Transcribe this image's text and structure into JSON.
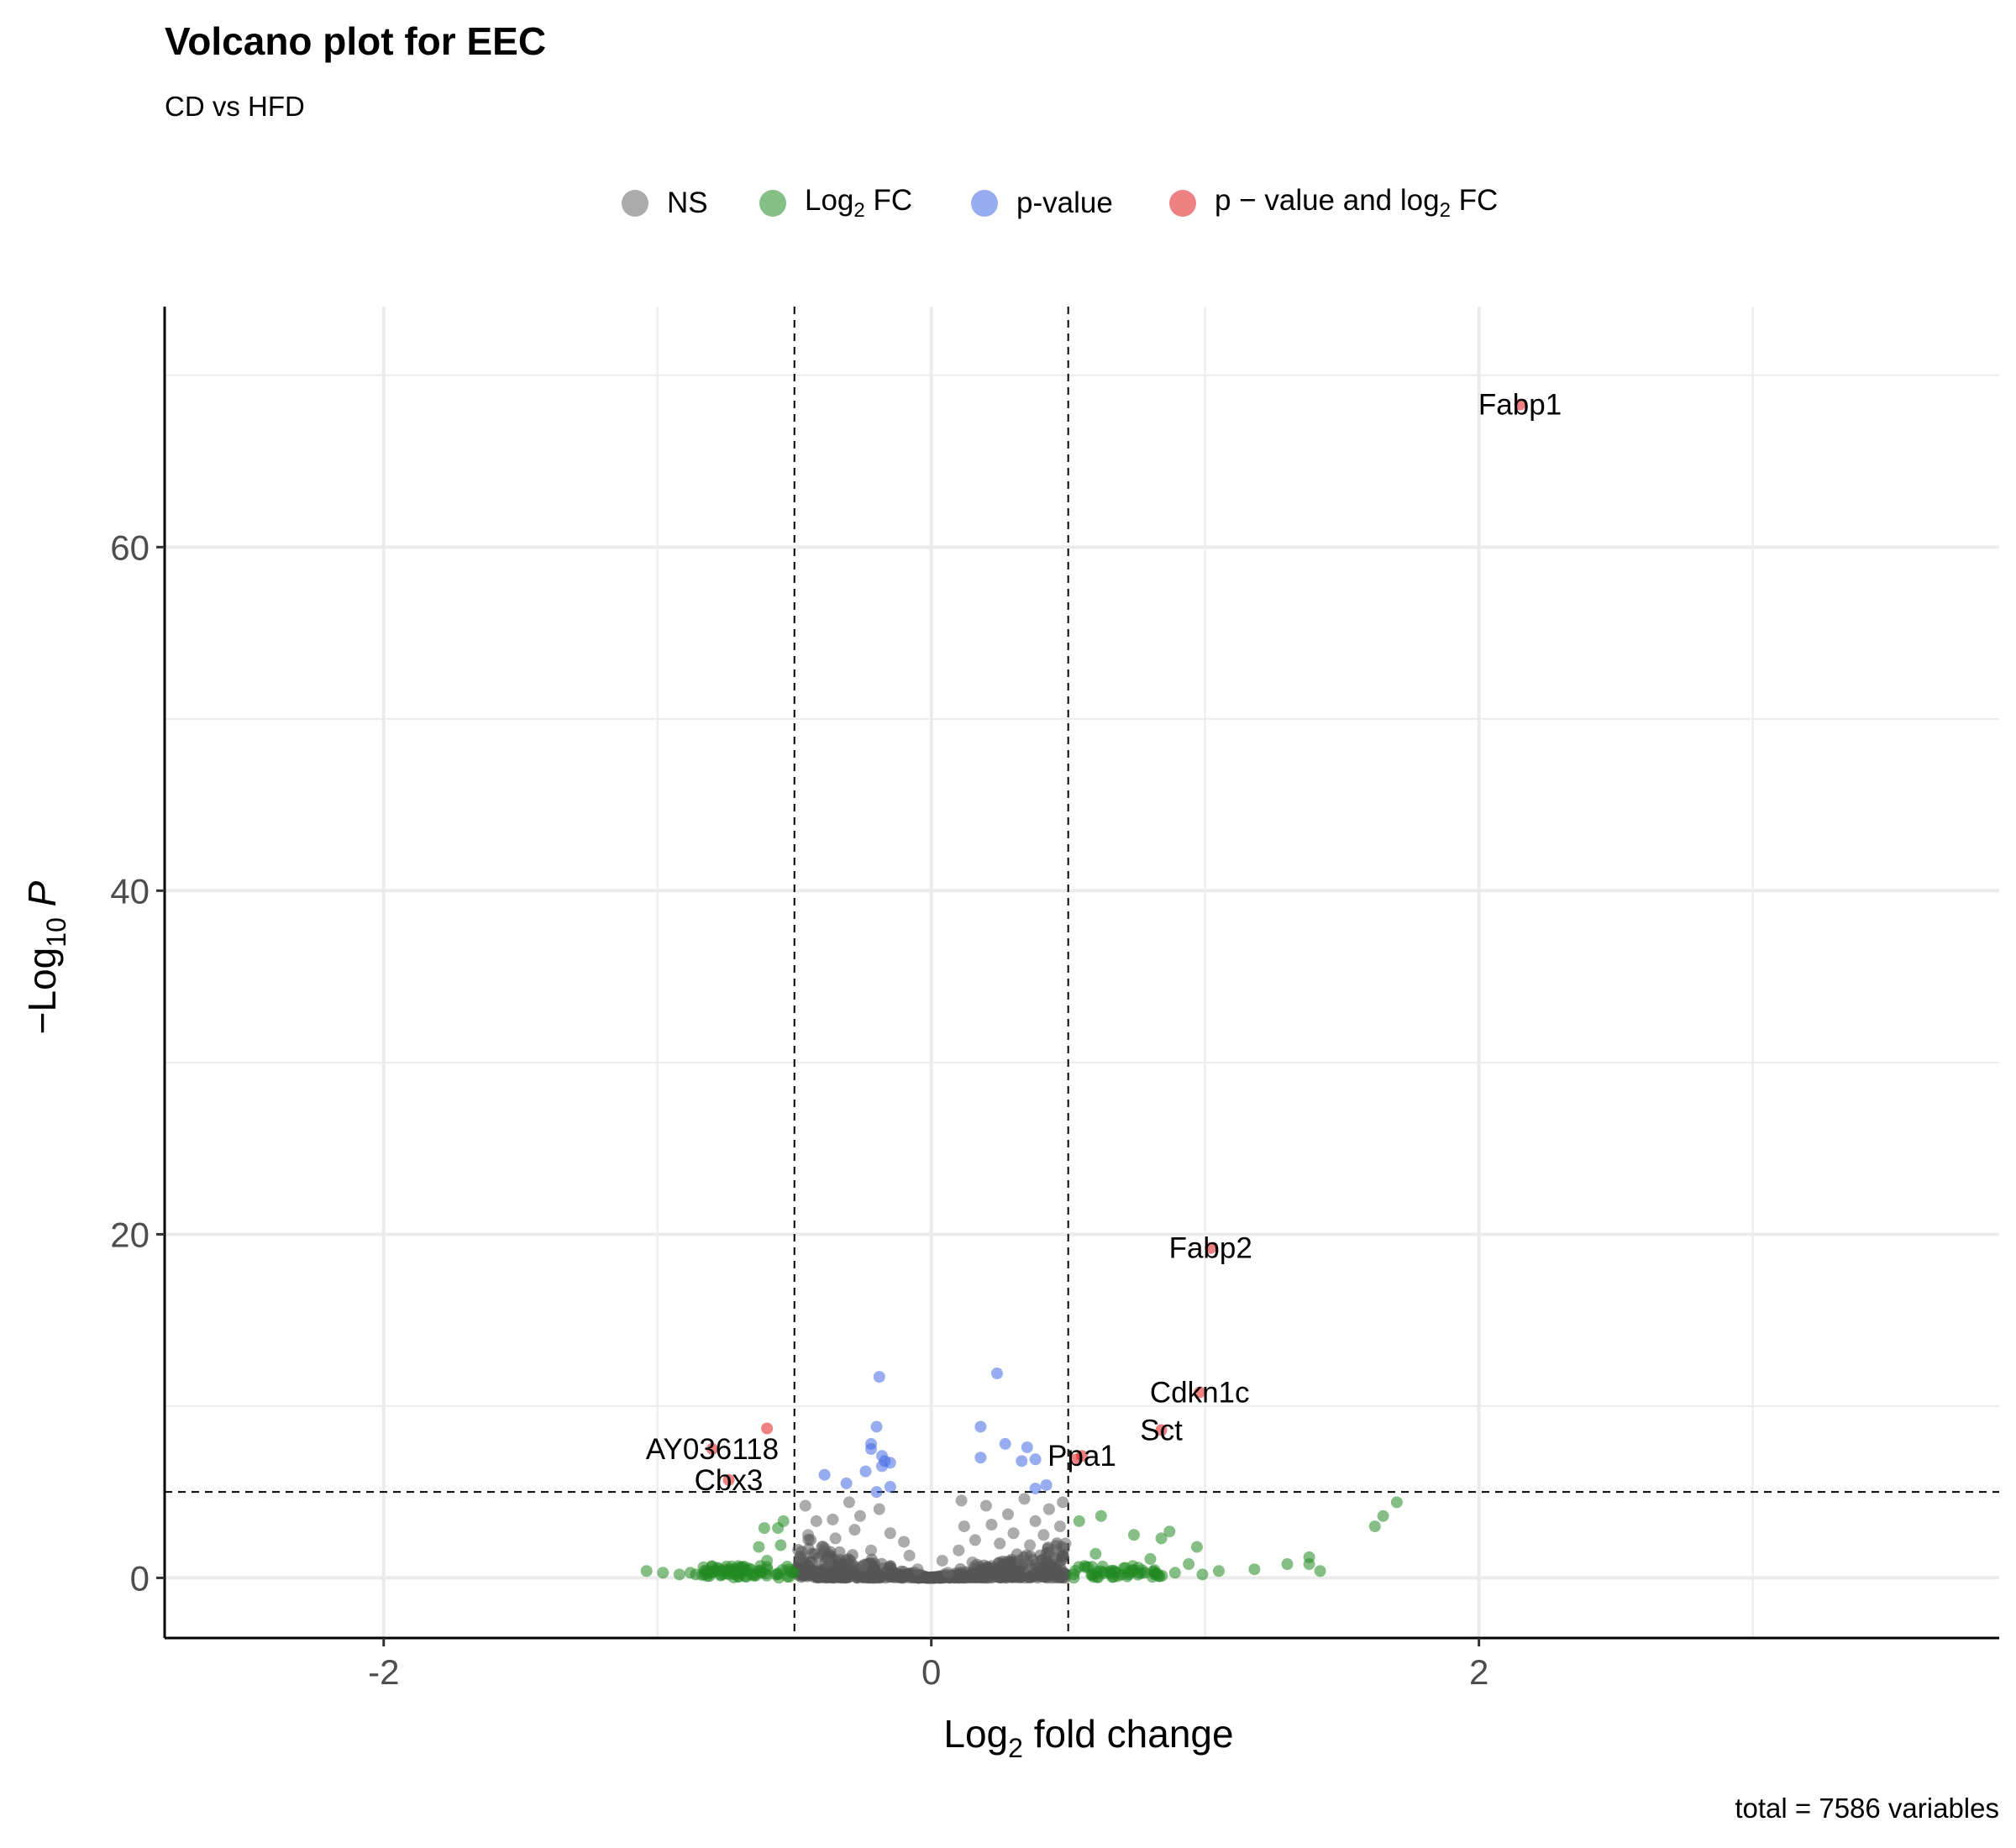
{
  "title": "Volcano plot for EEC",
  "subtitle": "CD vs HFD",
  "caption": "total = 7586 variables",
  "legend": {
    "items": [
      {
        "id": "ns",
        "label": "NS",
        "color": "#666666"
      },
      {
        "id": "fc",
        "label": "Log2 FC",
        "color": "#228B22"
      },
      {
        "id": "p",
        "label": "p-value",
        "color": "#4169E1"
      },
      {
        "id": "pfc",
        "label": "p − value and log2 FC",
        "color": "#E41A1C"
      }
    ]
  },
  "chart_data": {
    "type": "scatter",
    "title": "Volcano plot for EEC",
    "subtitle": "CD vs HFD",
    "xlabel": "Log2 fold change",
    "ylabel": "−Log10 P",
    "xlim": [
      -2.8,
      3.9
    ],
    "ylim": [
      -3.5,
      74
    ],
    "xticks": [
      -2,
      0,
      2
    ],
    "xtick_labels": [
      "-2",
      "0",
      "2"
    ],
    "yticks": [
      0,
      20,
      40,
      60
    ],
    "ytick_labels": [
      "0",
      "20",
      "40",
      "60"
    ],
    "grid": true,
    "legend_position": "top",
    "cutoffs": {
      "log2fc": 0.5,
      "neg_log10_p": 5
    },
    "series": [
      {
        "name": "NS",
        "color": "#666666",
        "points": [
          [
            -0.46,
            4.2
          ],
          [
            -0.42,
            3.3
          ],
          [
            -0.36,
            3.4
          ],
          [
            -0.3,
            4.4
          ],
          [
            -0.26,
            3.6
          ],
          [
            -0.19,
            4.0
          ],
          [
            -0.1,
            2.1
          ],
          [
            -0.45,
            2.5
          ],
          [
            -0.4,
            1.8
          ],
          [
            -0.35,
            2.3
          ],
          [
            -0.28,
            2.8
          ],
          [
            -0.22,
            1.6
          ],
          [
            -0.15,
            2.6
          ],
          [
            -0.08,
            1.3
          ],
          [
            0.04,
            1.0
          ],
          [
            0.1,
            1.6
          ],
          [
            0.12,
            3.0
          ],
          [
            0.11,
            4.5
          ],
          [
            0.16,
            2.2
          ],
          [
            0.2,
            4.2
          ],
          [
            0.22,
            3.1
          ],
          [
            0.25,
            2.0
          ],
          [
            0.28,
            3.7
          ],
          [
            0.3,
            2.6
          ],
          [
            0.34,
            4.6
          ],
          [
            0.36,
            1.9
          ],
          [
            0.38,
            3.3
          ],
          [
            0.41,
            2.5
          ],
          [
            0.43,
            4.0
          ],
          [
            0.45,
            1.6
          ],
          [
            0.47,
            3.0
          ],
          [
            0.48,
            4.4
          ],
          [
            0.49,
            2.0
          ],
          [
            -0.05,
            0.5
          ],
          [
            0.06,
            0.3
          ],
          [
            -0.48,
            1.2
          ],
          [
            -0.38,
            0.9
          ],
          [
            -0.25,
            0.7
          ],
          [
            0.15,
            0.9
          ],
          [
            0.33,
            1.0
          ]
        ]
      },
      {
        "name": "Log2 FC",
        "color": "#228B22",
        "points": [
          [
            -1.04,
            0.4
          ],
          [
            -0.98,
            0.3
          ],
          [
            -0.92,
            0.2
          ],
          [
            -0.86,
            0.2
          ],
          [
            -0.8,
            0.3
          ],
          [
            -0.74,
            0.2
          ],
          [
            -0.68,
            0.4
          ],
          [
            -0.62,
            0.3
          ],
          [
            -0.56,
            0.2
          ],
          [
            -0.52,
            0.5
          ],
          [
            -0.6,
            1.0
          ],
          [
            -0.63,
            1.8
          ],
          [
            -0.61,
            2.9
          ],
          [
            -0.56,
            2.9
          ],
          [
            -0.54,
            3.3
          ],
          [
            -0.55,
            1.9
          ],
          [
            -0.72,
            0.5
          ],
          [
            -0.88,
            0.3
          ],
          [
            0.52,
            0.2
          ],
          [
            0.56,
            0.7
          ],
          [
            0.6,
            1.4
          ],
          [
            0.62,
            3.6
          ],
          [
            0.54,
            3.3
          ],
          [
            0.68,
            0.1
          ],
          [
            0.72,
            0.2
          ],
          [
            0.74,
            2.5
          ],
          [
            0.78,
            0.3
          ],
          [
            0.8,
            1.1
          ],
          [
            0.84,
            2.3
          ],
          [
            0.87,
            2.7
          ],
          [
            0.89,
            0.3
          ],
          [
            0.94,
            0.8
          ],
          [
            0.97,
            1.8
          ],
          [
            0.99,
            0.2
          ],
          [
            1.05,
            0.4
          ],
          [
            1.18,
            0.5
          ],
          [
            1.3,
            0.8
          ],
          [
            1.38,
            1.2
          ],
          [
            1.38,
            0.8
          ],
          [
            1.42,
            0.4
          ],
          [
            1.62,
            3.0
          ],
          [
            1.65,
            3.6
          ],
          [
            1.7,
            4.4
          ]
        ]
      },
      {
        "name": "p-value",
        "color": "#4169E1",
        "points": [
          [
            -0.39,
            6.0
          ],
          [
            -0.31,
            5.5
          ],
          [
            -0.24,
            6.2
          ],
          [
            -0.22,
            7.5
          ],
          [
            -0.22,
            7.8
          ],
          [
            -0.2,
            8.8
          ],
          [
            -0.19,
            11.7
          ],
          [
            -0.2,
            5.0
          ],
          [
            -0.18,
            6.5
          ],
          [
            -0.17,
            6.8
          ],
          [
            -0.15,
            5.3
          ],
          [
            -0.15,
            6.7
          ],
          [
            -0.18,
            7.1
          ],
          [
            0.18,
            8.8
          ],
          [
            0.18,
            7.0
          ],
          [
            0.24,
            11.9
          ],
          [
            0.27,
            7.8
          ],
          [
            0.33,
            6.8
          ],
          [
            0.35,
            7.6
          ],
          [
            0.38,
            6.9
          ],
          [
            0.38,
            5.2
          ],
          [
            0.42,
            5.4
          ]
        ]
      },
      {
        "name": "p − value and log2 FC",
        "color": "#E41A1C",
        "points": [
          [
            2.15,
            68.3
          ],
          [
            1.02,
            19.2
          ],
          [
            0.98,
            10.8
          ],
          [
            0.84,
            8.6
          ],
          [
            0.53,
            6.9
          ],
          [
            0.55,
            7.1
          ],
          [
            -0.6,
            8.7
          ],
          [
            -0.8,
            7.5
          ],
          [
            -0.74,
            5.7
          ]
        ]
      }
    ],
    "labels": [
      {
        "text": "Fabp1",
        "x": 2.15,
        "y": 68.3
      },
      {
        "text": "Fabp2",
        "x": 1.02,
        "y": 19.2
      },
      {
        "text": "Cdkn1c",
        "x": 0.98,
        "y": 10.8
      },
      {
        "text": "Sct",
        "x": 0.84,
        "y": 8.6
      },
      {
        "text": "Ppa1",
        "x": 0.55,
        "y": 7.1
      },
      {
        "text": "AY036118",
        "x": -0.8,
        "y": 7.5
      },
      {
        "text": "Cbx3",
        "x": -0.74,
        "y": 5.7
      }
    ]
  }
}
